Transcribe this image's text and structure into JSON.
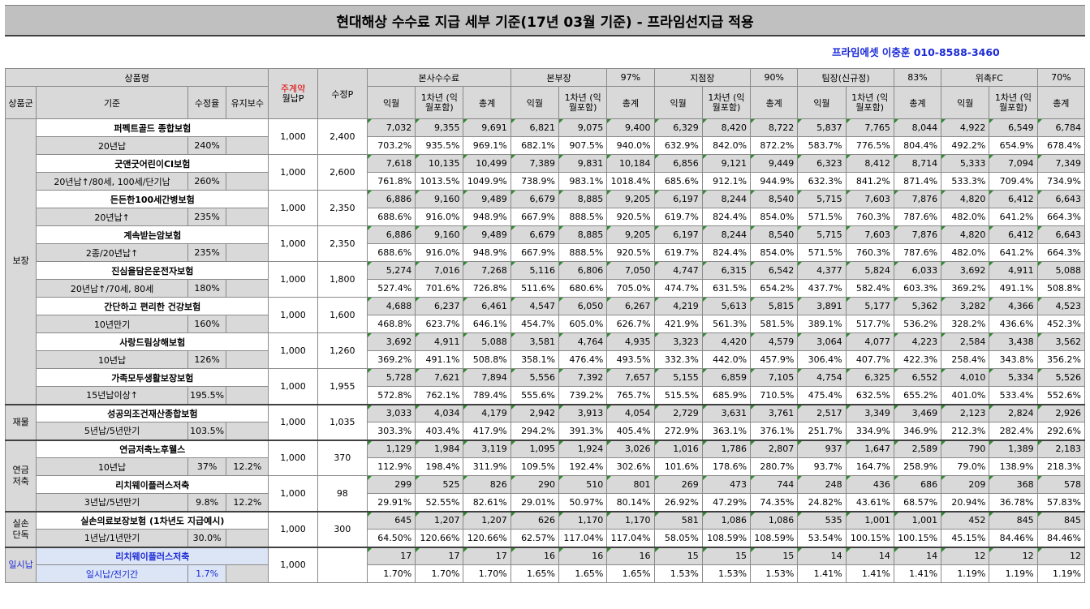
{
  "title": "현대해상 수수료 지급 세부 기준(17년 03월 기준) - 프라임선지급 적용",
  "contact": "프라임에셋 이충훈 010-8588-3460",
  "headers": {
    "product_name": "상품명",
    "product_group": "상품군",
    "criteria": "기준",
    "adj_rate": "수정율",
    "maint_fee": "유지보수",
    "main_contract_note": "주계약",
    "monthly_p": "월납P",
    "adj_p": "수정P",
    "hq_fee": "본사수수료",
    "hq_director": "본부장",
    "hq_director_pct": "97%",
    "branch_mgr": "지점장",
    "branch_mgr_pct": "90%",
    "team_mgr": "팀장(신규정)",
    "team_mgr_pct": "83%",
    "fc": "위촉FC",
    "fc_pct": "70%",
    "col_month": "익월",
    "col_year1": "1차년\n(익월포함)",
    "col_total": "총계"
  },
  "groups": [
    {
      "name": "보장",
      "rows": 8
    },
    {
      "name": "재물",
      "rows": 1
    },
    {
      "name": "연금\n저축",
      "rows": 2
    },
    {
      "name": "실손\n단독",
      "rows": 1
    },
    {
      "name": "일시납",
      "rows": 1
    }
  ],
  "products": [
    {
      "name": "퍼펙트골드 종합보험",
      "criteria": "20년납",
      "adj_rate": "240%",
      "maint": "",
      "monthly": "1,000",
      "adj_p": "2,400",
      "amounts": [
        "7,032",
        "9,355",
        "9,691",
        "6,821",
        "9,075",
        "9,400",
        "6,329",
        "8,420",
        "8,722",
        "5,837",
        "7,765",
        "8,044",
        "4,922",
        "6,549",
        "6,784"
      ],
      "rates": [
        "703.2%",
        "935.5%",
        "969.1%",
        "682.1%",
        "907.5%",
        "940.0%",
        "632.9%",
        "842.0%",
        "872.2%",
        "583.7%",
        "776.5%",
        "804.4%",
        "492.2%",
        "654.9%",
        "678.4%"
      ]
    },
    {
      "name": "굿앤굿어린이CI보험",
      "criteria": "20년납↑/80세, 100세/단기납",
      "adj_rate": "260%",
      "maint": "",
      "monthly": "1,000",
      "adj_p": "2,600",
      "amounts": [
        "7,618",
        "10,135",
        "10,499",
        "7,389",
        "9,831",
        "10,184",
        "6,856",
        "9,121",
        "9,449",
        "6,323",
        "8,412",
        "8,714",
        "5,333",
        "7,094",
        "7,349"
      ],
      "rates": [
        "761.8%",
        "1013.5%",
        "1049.9%",
        "738.9%",
        "983.1%",
        "1018.4%",
        "685.6%",
        "912.1%",
        "944.9%",
        "632.3%",
        "841.2%",
        "871.4%",
        "533.3%",
        "709.4%",
        "734.9%"
      ]
    },
    {
      "name": "든든한100세간병보험",
      "criteria": "20년납↑",
      "adj_rate": "235%",
      "maint": "",
      "monthly": "1,000",
      "adj_p": "2,350",
      "amounts": [
        "6,886",
        "9,160",
        "9,489",
        "6,679",
        "8,885",
        "9,205",
        "6,197",
        "8,244",
        "8,540",
        "5,715",
        "7,603",
        "7,876",
        "4,820",
        "6,412",
        "6,643"
      ],
      "rates": [
        "688.6%",
        "916.0%",
        "948.9%",
        "667.9%",
        "888.5%",
        "920.5%",
        "619.7%",
        "824.4%",
        "854.0%",
        "571.5%",
        "760.3%",
        "787.6%",
        "482.0%",
        "641.2%",
        "664.3%"
      ]
    },
    {
      "name": "계속받는암보험",
      "criteria": "2종/20년납↑",
      "adj_rate": "235%",
      "maint": "",
      "monthly": "1,000",
      "adj_p": "2,350",
      "amounts": [
        "6,886",
        "9,160",
        "9,489",
        "6,679",
        "8,885",
        "9,205",
        "6,197",
        "8,244",
        "8,540",
        "5,715",
        "7,603",
        "7,876",
        "4,820",
        "6,412",
        "6,643"
      ],
      "rates": [
        "688.6%",
        "916.0%",
        "948.9%",
        "667.9%",
        "888.5%",
        "920.5%",
        "619.7%",
        "824.4%",
        "854.0%",
        "571.5%",
        "760.3%",
        "787.6%",
        "482.0%",
        "641.2%",
        "664.3%"
      ]
    },
    {
      "name": "진심을담은운전자보험",
      "criteria": "20년납↑/70세, 80세",
      "adj_rate": "180%",
      "maint": "",
      "monthly": "1,000",
      "adj_p": "1,800",
      "amounts": [
        "5,274",
        "7,016",
        "7,268",
        "5,116",
        "6,806",
        "7,050",
        "4,747",
        "6,315",
        "6,542",
        "4,377",
        "5,824",
        "6,033",
        "3,692",
        "4,911",
        "5,088"
      ],
      "rates": [
        "527.4%",
        "701.6%",
        "726.8%",
        "511.6%",
        "680.6%",
        "705.0%",
        "474.7%",
        "631.5%",
        "654.2%",
        "437.7%",
        "582.4%",
        "603.3%",
        "369.2%",
        "491.1%",
        "508.8%"
      ]
    },
    {
      "name": "간단하고 편리한 건강보험",
      "criteria": "10년만기",
      "adj_rate": "160%",
      "maint": "",
      "monthly": "1,000",
      "adj_p": "1,600",
      "amounts": [
        "4,688",
        "6,237",
        "6,461",
        "4,547",
        "6,050",
        "6,267",
        "4,219",
        "5,613",
        "5,815",
        "3,891",
        "5,177",
        "5,362",
        "3,282",
        "4,366",
        "4,523"
      ],
      "rates": [
        "468.8%",
        "623.7%",
        "646.1%",
        "454.7%",
        "605.0%",
        "626.7%",
        "421.9%",
        "561.3%",
        "581.5%",
        "389.1%",
        "517.7%",
        "536.2%",
        "328.2%",
        "436.6%",
        "452.3%"
      ]
    },
    {
      "name": "사랑드림상해보험",
      "criteria": "10년납",
      "adj_rate": "126%",
      "maint": "",
      "monthly": "1,000",
      "adj_p": "1,260",
      "amounts": [
        "3,692",
        "4,911",
        "5,088",
        "3,581",
        "4,764",
        "4,935",
        "3,323",
        "4,420",
        "4,579",
        "3,064",
        "4,077",
        "4,223",
        "2,584",
        "3,438",
        "3,562"
      ],
      "rates": [
        "369.2%",
        "491.1%",
        "508.8%",
        "358.1%",
        "476.4%",
        "493.5%",
        "332.3%",
        "442.0%",
        "457.9%",
        "306.4%",
        "407.7%",
        "422.3%",
        "258.4%",
        "343.8%",
        "356.2%"
      ]
    },
    {
      "name": "가족모두생활보장보험",
      "criteria": "15년납이상↑",
      "adj_rate": "195.5%",
      "maint": "",
      "monthly": "1,000",
      "adj_p": "1,955",
      "amounts": [
        "5,728",
        "7,621",
        "7,894",
        "5,556",
        "7,392",
        "7,657",
        "5,155",
        "6,859",
        "7,105",
        "4,754",
        "6,325",
        "6,552",
        "4,010",
        "5,334",
        "5,526"
      ],
      "rates": [
        "572.8%",
        "762.1%",
        "789.4%",
        "555.6%",
        "739.2%",
        "765.7%",
        "515.5%",
        "685.9%",
        "710.5%",
        "475.4%",
        "632.5%",
        "655.2%",
        "401.0%",
        "533.4%",
        "552.6%"
      ]
    },
    {
      "name": "성공의조건재산종합보험",
      "criteria": "5년납/5년만기",
      "adj_rate": "103.5%",
      "maint": "",
      "monthly": "1,000",
      "adj_p": "1,035",
      "amounts": [
        "3,033",
        "4,034",
        "4,179",
        "2,942",
        "3,913",
        "4,054",
        "2,729",
        "3,631",
        "3,761",
        "2,517",
        "3,349",
        "3,469",
        "2,123",
        "2,824",
        "2,926"
      ],
      "rates": [
        "303.3%",
        "403.4%",
        "417.9%",
        "294.2%",
        "391.3%",
        "405.4%",
        "272.9%",
        "363.1%",
        "376.1%",
        "251.7%",
        "334.9%",
        "346.9%",
        "212.3%",
        "282.4%",
        "292.6%"
      ]
    },
    {
      "name": "연금저축노후웰스",
      "criteria": "10년납",
      "adj_rate": "37%",
      "maint": "12.2%",
      "monthly": "1,000",
      "adj_p": "370",
      "amounts": [
        "1,129",
        "1,984",
        "3,119",
        "1,095",
        "1,924",
        "3,026",
        "1,016",
        "1,786",
        "2,807",
        "937",
        "1,647",
        "2,589",
        "790",
        "1,389",
        "2,183"
      ],
      "rates": [
        "112.9%",
        "198.4%",
        "311.9%",
        "109.5%",
        "192.4%",
        "302.6%",
        "101.6%",
        "178.6%",
        "280.7%",
        "93.7%",
        "164.7%",
        "258.9%",
        "79.0%",
        "138.9%",
        "218.3%"
      ]
    },
    {
      "name": "리치웨이플러스저축",
      "criteria": "3년납/5년만기",
      "adj_rate": "9.8%",
      "maint": "12.2%",
      "monthly": "1,000",
      "adj_p": "98",
      "amounts": [
        "299",
        "525",
        "826",
        "290",
        "510",
        "801",
        "269",
        "473",
        "744",
        "248",
        "436",
        "686",
        "209",
        "368",
        "578"
      ],
      "rates": [
        "29.91%",
        "52.55%",
        "82.61%",
        "29.01%",
        "50.97%",
        "80.14%",
        "26.92%",
        "47.29%",
        "74.35%",
        "24.82%",
        "43.61%",
        "68.57%",
        "20.94%",
        "36.78%",
        "57.83%"
      ]
    },
    {
      "name": "실손의료보장보험 (1차년도 지급예시)",
      "criteria": "1년납/1년만기",
      "adj_rate": "30.0%",
      "maint": "",
      "monthly": "1,000",
      "adj_p": "300",
      "amounts": [
        "645",
        "1,207",
        "1,207",
        "626",
        "1,170",
        "1,170",
        "581",
        "1,086",
        "1,086",
        "535",
        "1,001",
        "1,001",
        "452",
        "845",
        "845"
      ],
      "rates": [
        "64.50%",
        "120.66%",
        "120.66%",
        "62.57%",
        "117.04%",
        "117.04%",
        "58.05%",
        "108.59%",
        "108.59%",
        "53.54%",
        "100.15%",
        "100.15%",
        "45.15%",
        "84.46%",
        "84.46%"
      ]
    },
    {
      "name": "리치웨이플러스저축",
      "criteria": "일시납/전기간",
      "adj_rate": "1.7%",
      "maint": "",
      "monthly": "1,000",
      "adj_p": "",
      "amounts": [
        "17",
        "17",
        "17",
        "16",
        "16",
        "16",
        "15",
        "15",
        "15",
        "14",
        "14",
        "14",
        "12",
        "12",
        "12"
      ],
      "rates": [
        "1.70%",
        "1.70%",
        "1.70%",
        "1.65%",
        "1.65%",
        "1.65%",
        "1.53%",
        "1.53%",
        "1.53%",
        "1.41%",
        "1.41%",
        "1.41%",
        "1.19%",
        "1.19%",
        "1.19%"
      ]
    }
  ],
  "colors": {
    "header_gray": "#d9d9d9",
    "blue_text": "#1c2bd6",
    "red_text": "#e00000",
    "marker_green": "#2e8b2e"
  }
}
